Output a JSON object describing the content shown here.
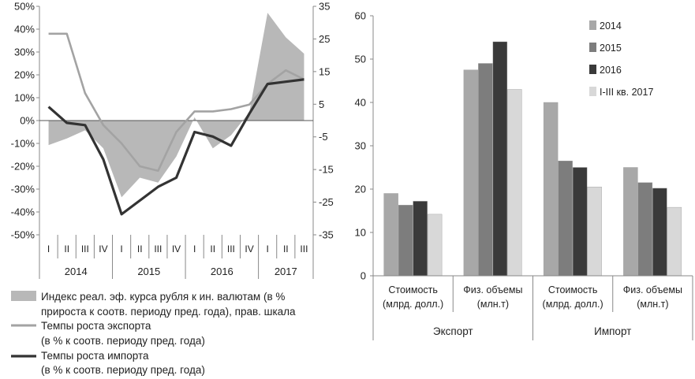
{
  "chart_data": [
    {
      "type": "line",
      "title": "",
      "y_left": {
        "ticks": [
          "50%",
          "40%",
          "30%",
          "20%",
          "10%",
          "0%",
          "-10%",
          "-20%",
          "-30%",
          "-40%",
          "-50%"
        ],
        "ylim": [
          -50,
          50
        ]
      },
      "y_right": {
        "ticks": [
          "35",
          "25",
          "15",
          "5",
          "-5",
          "-15",
          "-25",
          "-35"
        ],
        "ylim": [
          -35,
          35
        ]
      },
      "quarters": [
        "I",
        "II",
        "III",
        "IV",
        "I",
        "II",
        "III",
        "IV",
        "I",
        "II",
        "III",
        "IV",
        "I",
        "II",
        "III"
      ],
      "years": [
        "2014",
        "2015",
        "2016",
        "2017"
      ],
      "series": [
        {
          "name": "Индекс реал. эф. курса рубля к ин. валютам (в % прироста к соотв. периоду пред. года), прав. шкала",
          "axis": "right",
          "style": "area",
          "color": "#b8b8b8",
          "values": [
            -7.5,
            -5.5,
            -3,
            -8.5,
            -23.5,
            -17.5,
            -19,
            -11,
            1,
            -8.5,
            -4.5,
            2.5,
            33,
            25.5,
            20.5
          ]
        },
        {
          "name": "Темпы роста экспорта (в % к соотв. периоду пред. года)",
          "axis": "left",
          "style": "line",
          "color": "#a3a3a3",
          "values": [
            38,
            38,
            12,
            -2,
            -10,
            -20,
            -22,
            -5,
            4,
            4,
            5,
            7,
            16,
            22,
            18
          ]
        },
        {
          "name": "Темпы роста импорта (в % к соотв. периоду пред. года)",
          "axis": "left",
          "style": "line",
          "color": "#333333",
          "values": [
            6,
            -1,
            -2,
            -17,
            -41,
            -35,
            -29,
            -25,
            -5,
            -7,
            -11,
            3,
            16,
            17,
            18
          ]
        }
      ],
      "legend": [
        "Индекс реал. эф. курса рубля к ин. валютам (в %",
        "прироста к соотв. периоду пред. года), прав. шкала",
        "Темпы роста экспорта",
        "(в % к соотв. периоду пред. года)",
        "Темпы роста импорта",
        "(в % к соотв. периоду пред. года)"
      ]
    },
    {
      "type": "bar",
      "title": "",
      "ylim": [
        0,
        60
      ],
      "y_ticks": [
        "60",
        "50",
        "40",
        "30",
        "20",
        "10",
        "0"
      ],
      "categories": [
        {
          "line1": "Стоимость",
          "line2": "(млрд. долл.)"
        },
        {
          "line1": "Физ. объемы",
          "line2": "(млн.т)"
        },
        {
          "line1": "Стоимость",
          "line2": "(млрд. долл.)"
        },
        {
          "line1": "Физ. объемы",
          "line2": "(млн.т)"
        }
      ],
      "groups": [
        "Экспорт",
        "Импорт"
      ],
      "series": [
        {
          "name": "2014",
          "color": "#a8a8a8",
          "values": [
            19,
            47.5,
            40,
            25
          ]
        },
        {
          "name": "2015",
          "color": "#7d7d7d",
          "values": [
            16.3,
            49,
            26.5,
            21.5
          ]
        },
        {
          "name": "2016",
          "color": "#3a3a3a",
          "values": [
            17.2,
            54,
            25,
            20.2
          ]
        },
        {
          "name": "I-III кв. 2017",
          "color": "#d8d8d8",
          "values": [
            14.2,
            43,
            20.5,
            15.8
          ]
        }
      ]
    }
  ]
}
